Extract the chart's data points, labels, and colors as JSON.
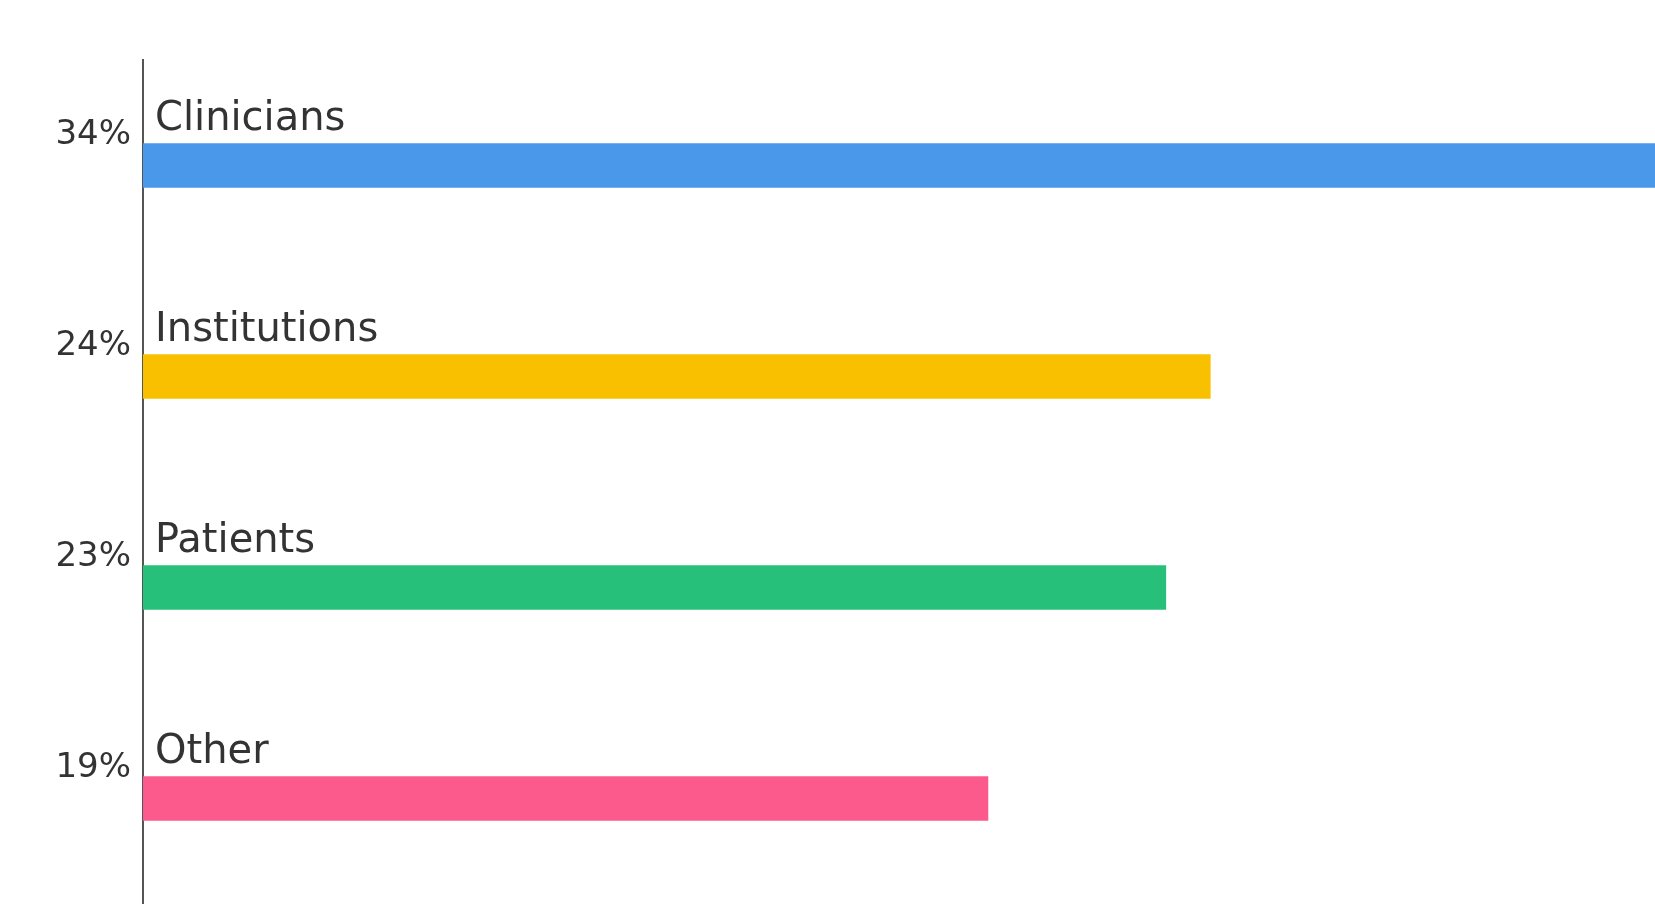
{
  "chart_data": {
    "type": "bar",
    "orientation": "horizontal",
    "categories": [
      "Clinicians",
      "Institutions",
      "Patients",
      "Other"
    ],
    "values": [
      34,
      24,
      23,
      19
    ],
    "colors": [
      "#4a98ea",
      "#f9c000",
      "#27c07a",
      "#fc5a8c"
    ],
    "value_labels": [
      "34%",
      "24%",
      "23%",
      "19%"
    ]
  }
}
